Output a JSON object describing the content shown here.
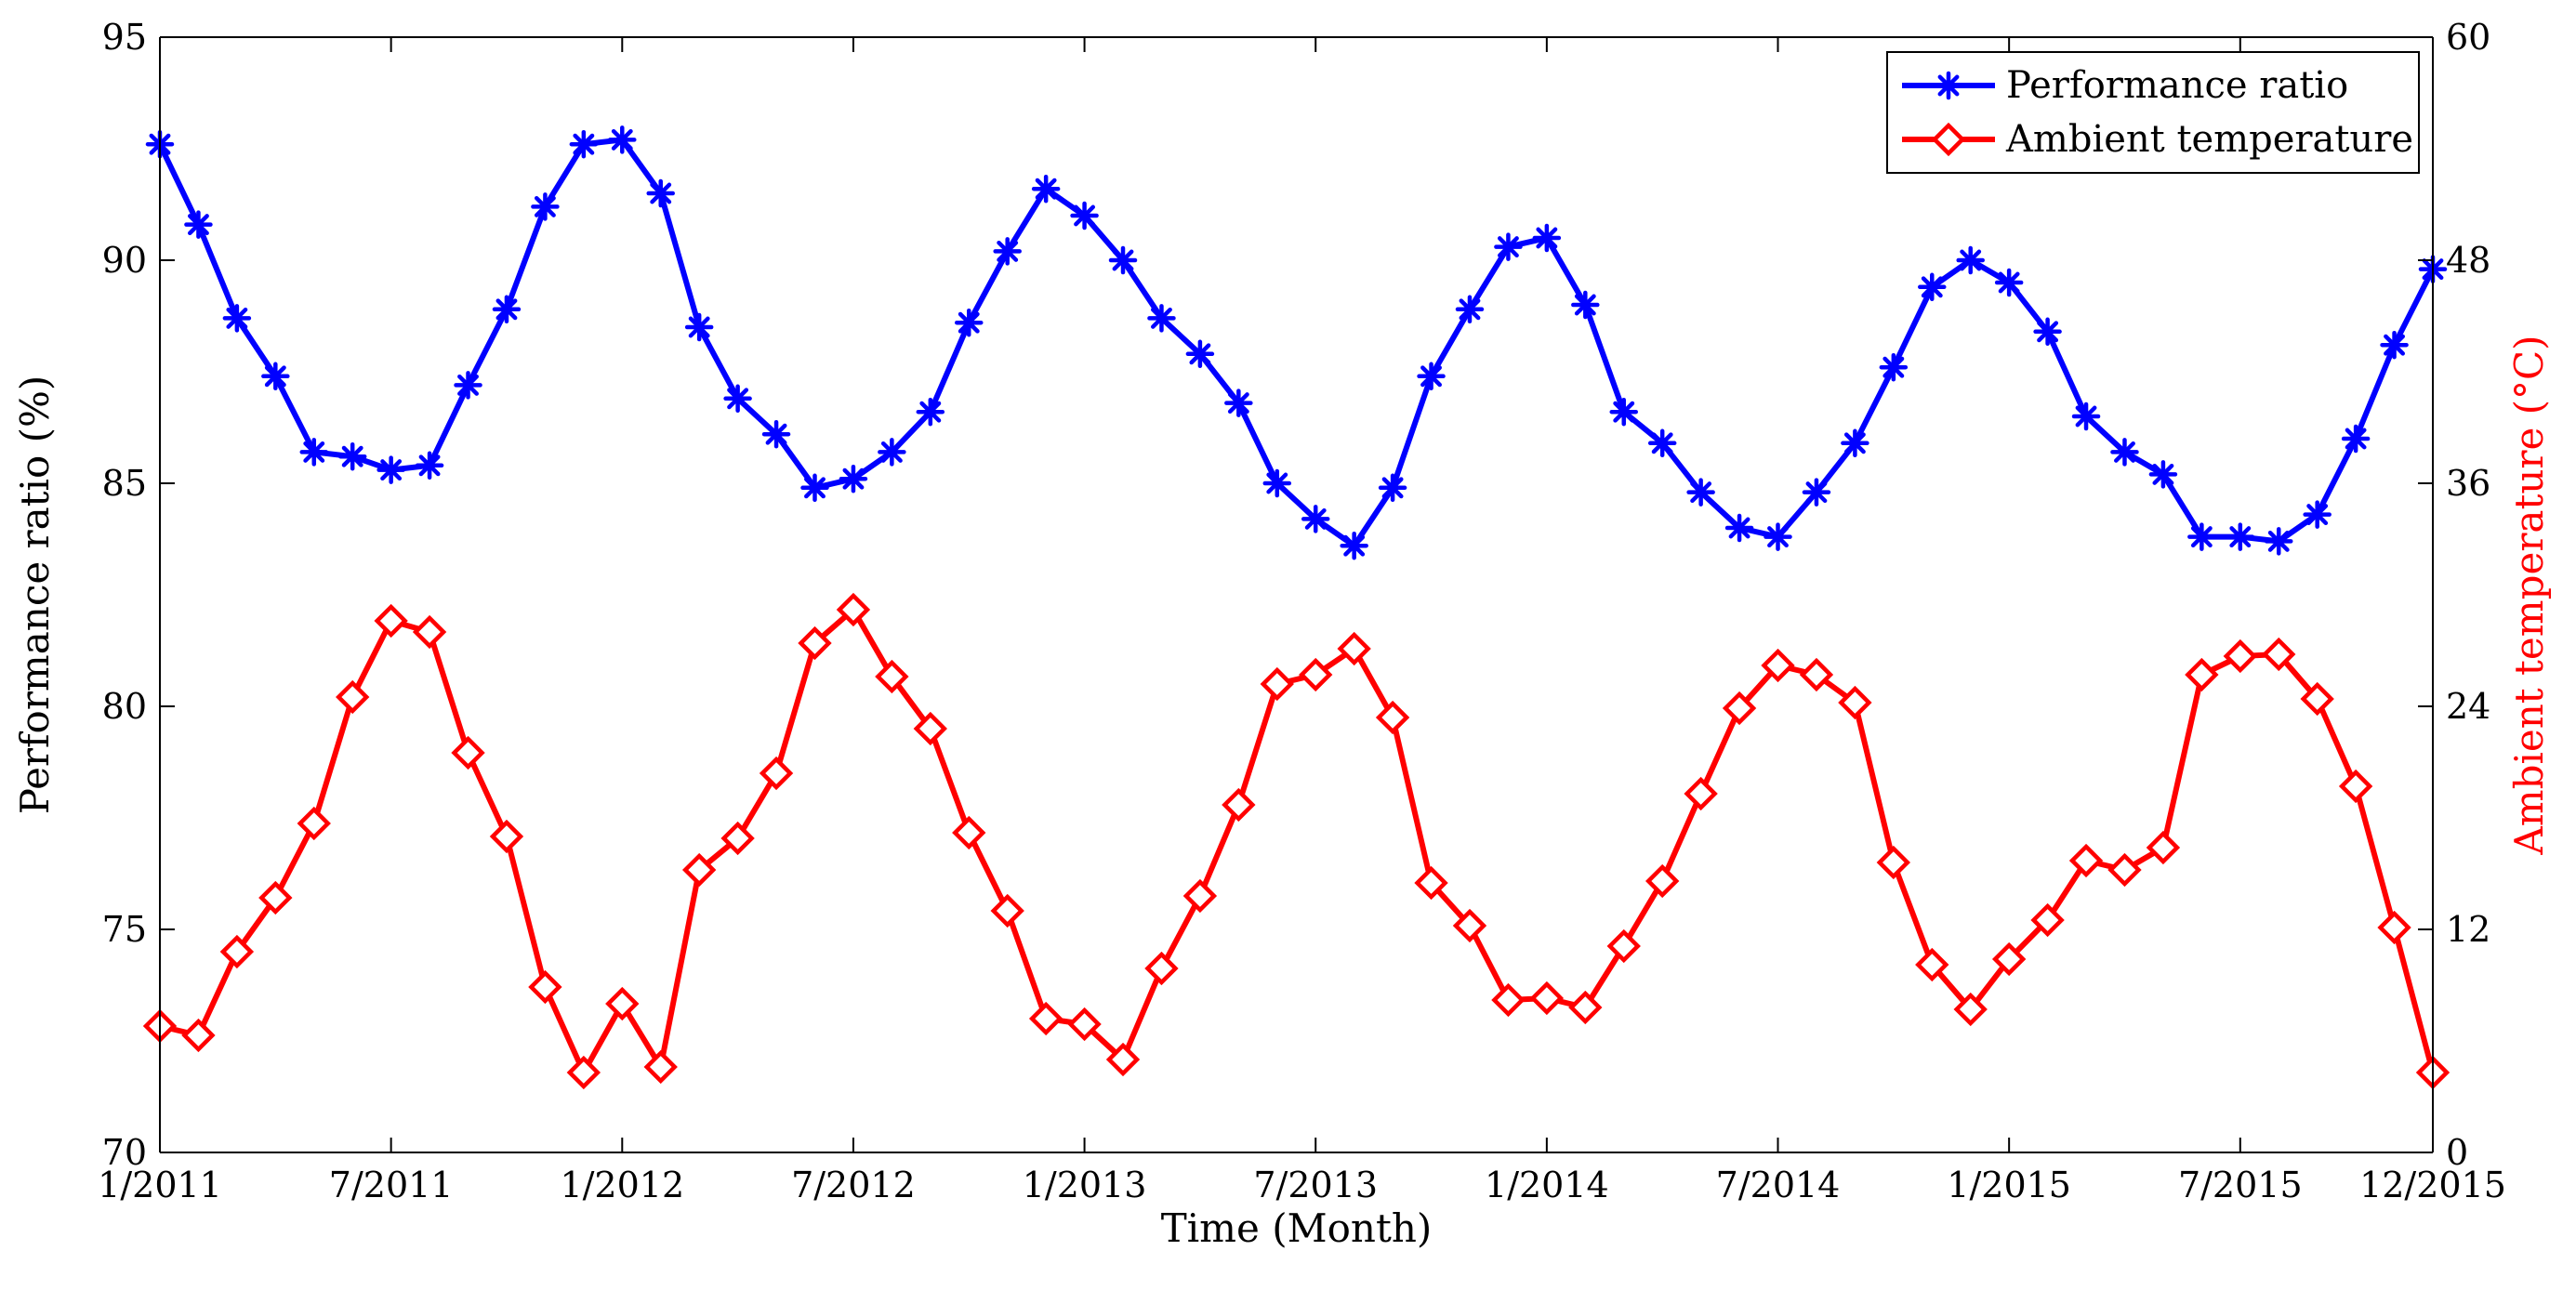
{
  "chart_data": {
    "type": "line",
    "xlabel": "Time (Month)",
    "ylabel_left": "Performance ratio (%)",
    "ylabel_right": "Ambient temperature (°C)",
    "ylim_left": [
      70,
      95
    ],
    "ylim_right": [
      0,
      60
    ],
    "yticks_left": [
      "70",
      "75",
      "80",
      "85",
      "90",
      "95"
    ],
    "yticks_right": [
      "0",
      "12",
      "24",
      "36",
      "48",
      "60"
    ],
    "x_tick_labels": [
      "1/2011",
      "7/2011",
      "1/2012",
      "7/2012",
      "1/2013",
      "7/2013",
      "1/2014",
      "7/2014",
      "1/2015",
      "7/2015",
      "12/2015"
    ],
    "x_tick_months": [
      0,
      6,
      12,
      18,
      24,
      30,
      36,
      42,
      48,
      54,
      59
    ],
    "grid": false,
    "legend_position": "top-right",
    "colors": {
      "performance": "#0000ff",
      "temperature": "#ff0000",
      "axis": "#000000",
      "right_axis_label": "#ff0000"
    },
    "series": [
      {
        "name": "Performance ratio",
        "axis": "left",
        "marker": "asterisk",
        "values": [
          92.6,
          90.8,
          88.7,
          87.4,
          85.7,
          85.6,
          85.3,
          85.4,
          87.2,
          88.9,
          91.2,
          92.6,
          92.7,
          91.5,
          88.5,
          86.9,
          86.1,
          84.9,
          85.1,
          85.7,
          86.6,
          88.6,
          90.2,
          91.6,
          91.0,
          90.0,
          88.7,
          87.9,
          86.8,
          85.0,
          84.2,
          83.6,
          84.9,
          87.4,
          88.9,
          90.3,
          90.5,
          89.0,
          86.6,
          85.9,
          84.8,
          84.0,
          83.8,
          84.8,
          85.9,
          87.6,
          89.4,
          90.0,
          89.5,
          88.4,
          86.5,
          85.7,
          85.2,
          83.8,
          83.8,
          83.7,
          84.3,
          86.0,
          88.1,
          89.8
        ]
      },
      {
        "name": "Ambient temperature",
        "axis": "right",
        "marker": "diamond",
        "values": [
          6.8,
          6.3,
          10.8,
          13.7,
          17.7,
          24.5,
          28.6,
          28.0,
          21.5,
          17.0,
          8.9,
          4.3,
          8.0,
          4.6,
          15.2,
          16.9,
          20.4,
          27.4,
          29.2,
          25.6,
          22.8,
          17.2,
          13.0,
          7.2,
          6.9,
          5.0,
          9.9,
          13.8,
          18.7,
          25.2,
          25.7,
          27.1,
          23.4,
          14.5,
          12.2,
          8.2,
          8.3,
          7.8,
          11.1,
          14.6,
          19.3,
          23.9,
          26.2,
          25.7,
          24.2,
          15.6,
          10.1,
          7.7,
          10.4,
          12.5,
          15.7,
          15.2,
          16.4,
          25.7,
          26.7,
          26.8,
          24.4,
          19.7,
          12.1,
          4.3
        ]
      }
    ]
  }
}
